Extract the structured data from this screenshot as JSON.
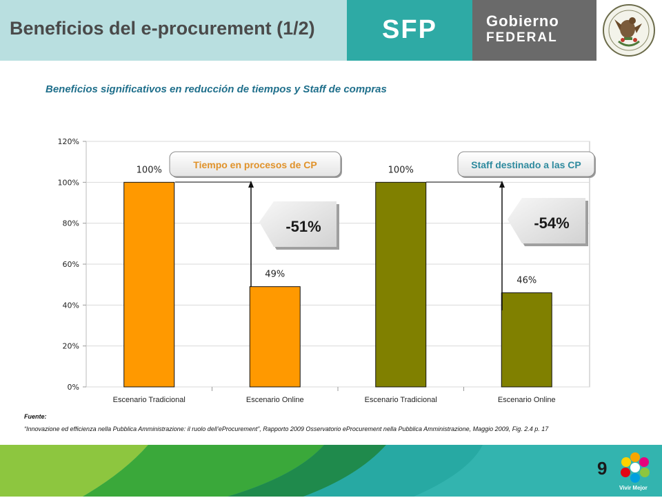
{
  "header": {
    "title": "Beneficios del e-procurement (1/2)",
    "sfp": "SFP",
    "gobierno": "Gobierno",
    "federal": "FEDERAL",
    "seal_text": "ESTADOS UNIDOS MEXICANOS"
  },
  "subtitle": "Beneficios significativos en reducción de tiempos y Staff de compras",
  "colors": {
    "header_light": "#b9dfe0",
    "header_teal": "#2eaaa5",
    "header_gray": "#6a6a6a",
    "orange": "#ff9900",
    "olive": "#808000",
    "subtitle": "#1f6f8b",
    "callout_label": "#e0922a",
    "callout_label_2": "#2e8a9e"
  },
  "chart_data": {
    "type": "bar",
    "categories": [
      "Escenario Tradicional",
      "Escenario Online",
      "Escenario Tradicional",
      "Escenario Online"
    ],
    "values": [
      1.0,
      0.49,
      1.0,
      0.46
    ],
    "data_labels": [
      "100%",
      "49%",
      "100%",
      "46%"
    ],
    "bar_colors": [
      "#ff9900",
      "#ff9900",
      "#808000",
      "#808000"
    ],
    "ylim": [
      0,
      1.2
    ],
    "yticks": [
      "0%",
      "20%",
      "40%",
      "60%",
      "80%",
      "100%",
      "120%"
    ],
    "grid": true,
    "title": "",
    "xlabel": "",
    "ylabel": "",
    "annotations": [
      {
        "label": "Tiempo en procesos de CP",
        "change": "-51%"
      },
      {
        "label": "Staff destinado a las CP",
        "change": "-54%"
      }
    ]
  },
  "source": {
    "label": "Fuente:",
    "text": "“Innovazione ed efficienza nella Pubblica Amministrazione: il ruolo dell’eProcurement”, Rapporto 2009 Osservatorio eProcurement nella Pubblica Amministrazione, Maggio 2009, Fig. 2.4 p. 17"
  },
  "footer": {
    "page_number": "9",
    "logo_label": "Vivir Mejor"
  }
}
